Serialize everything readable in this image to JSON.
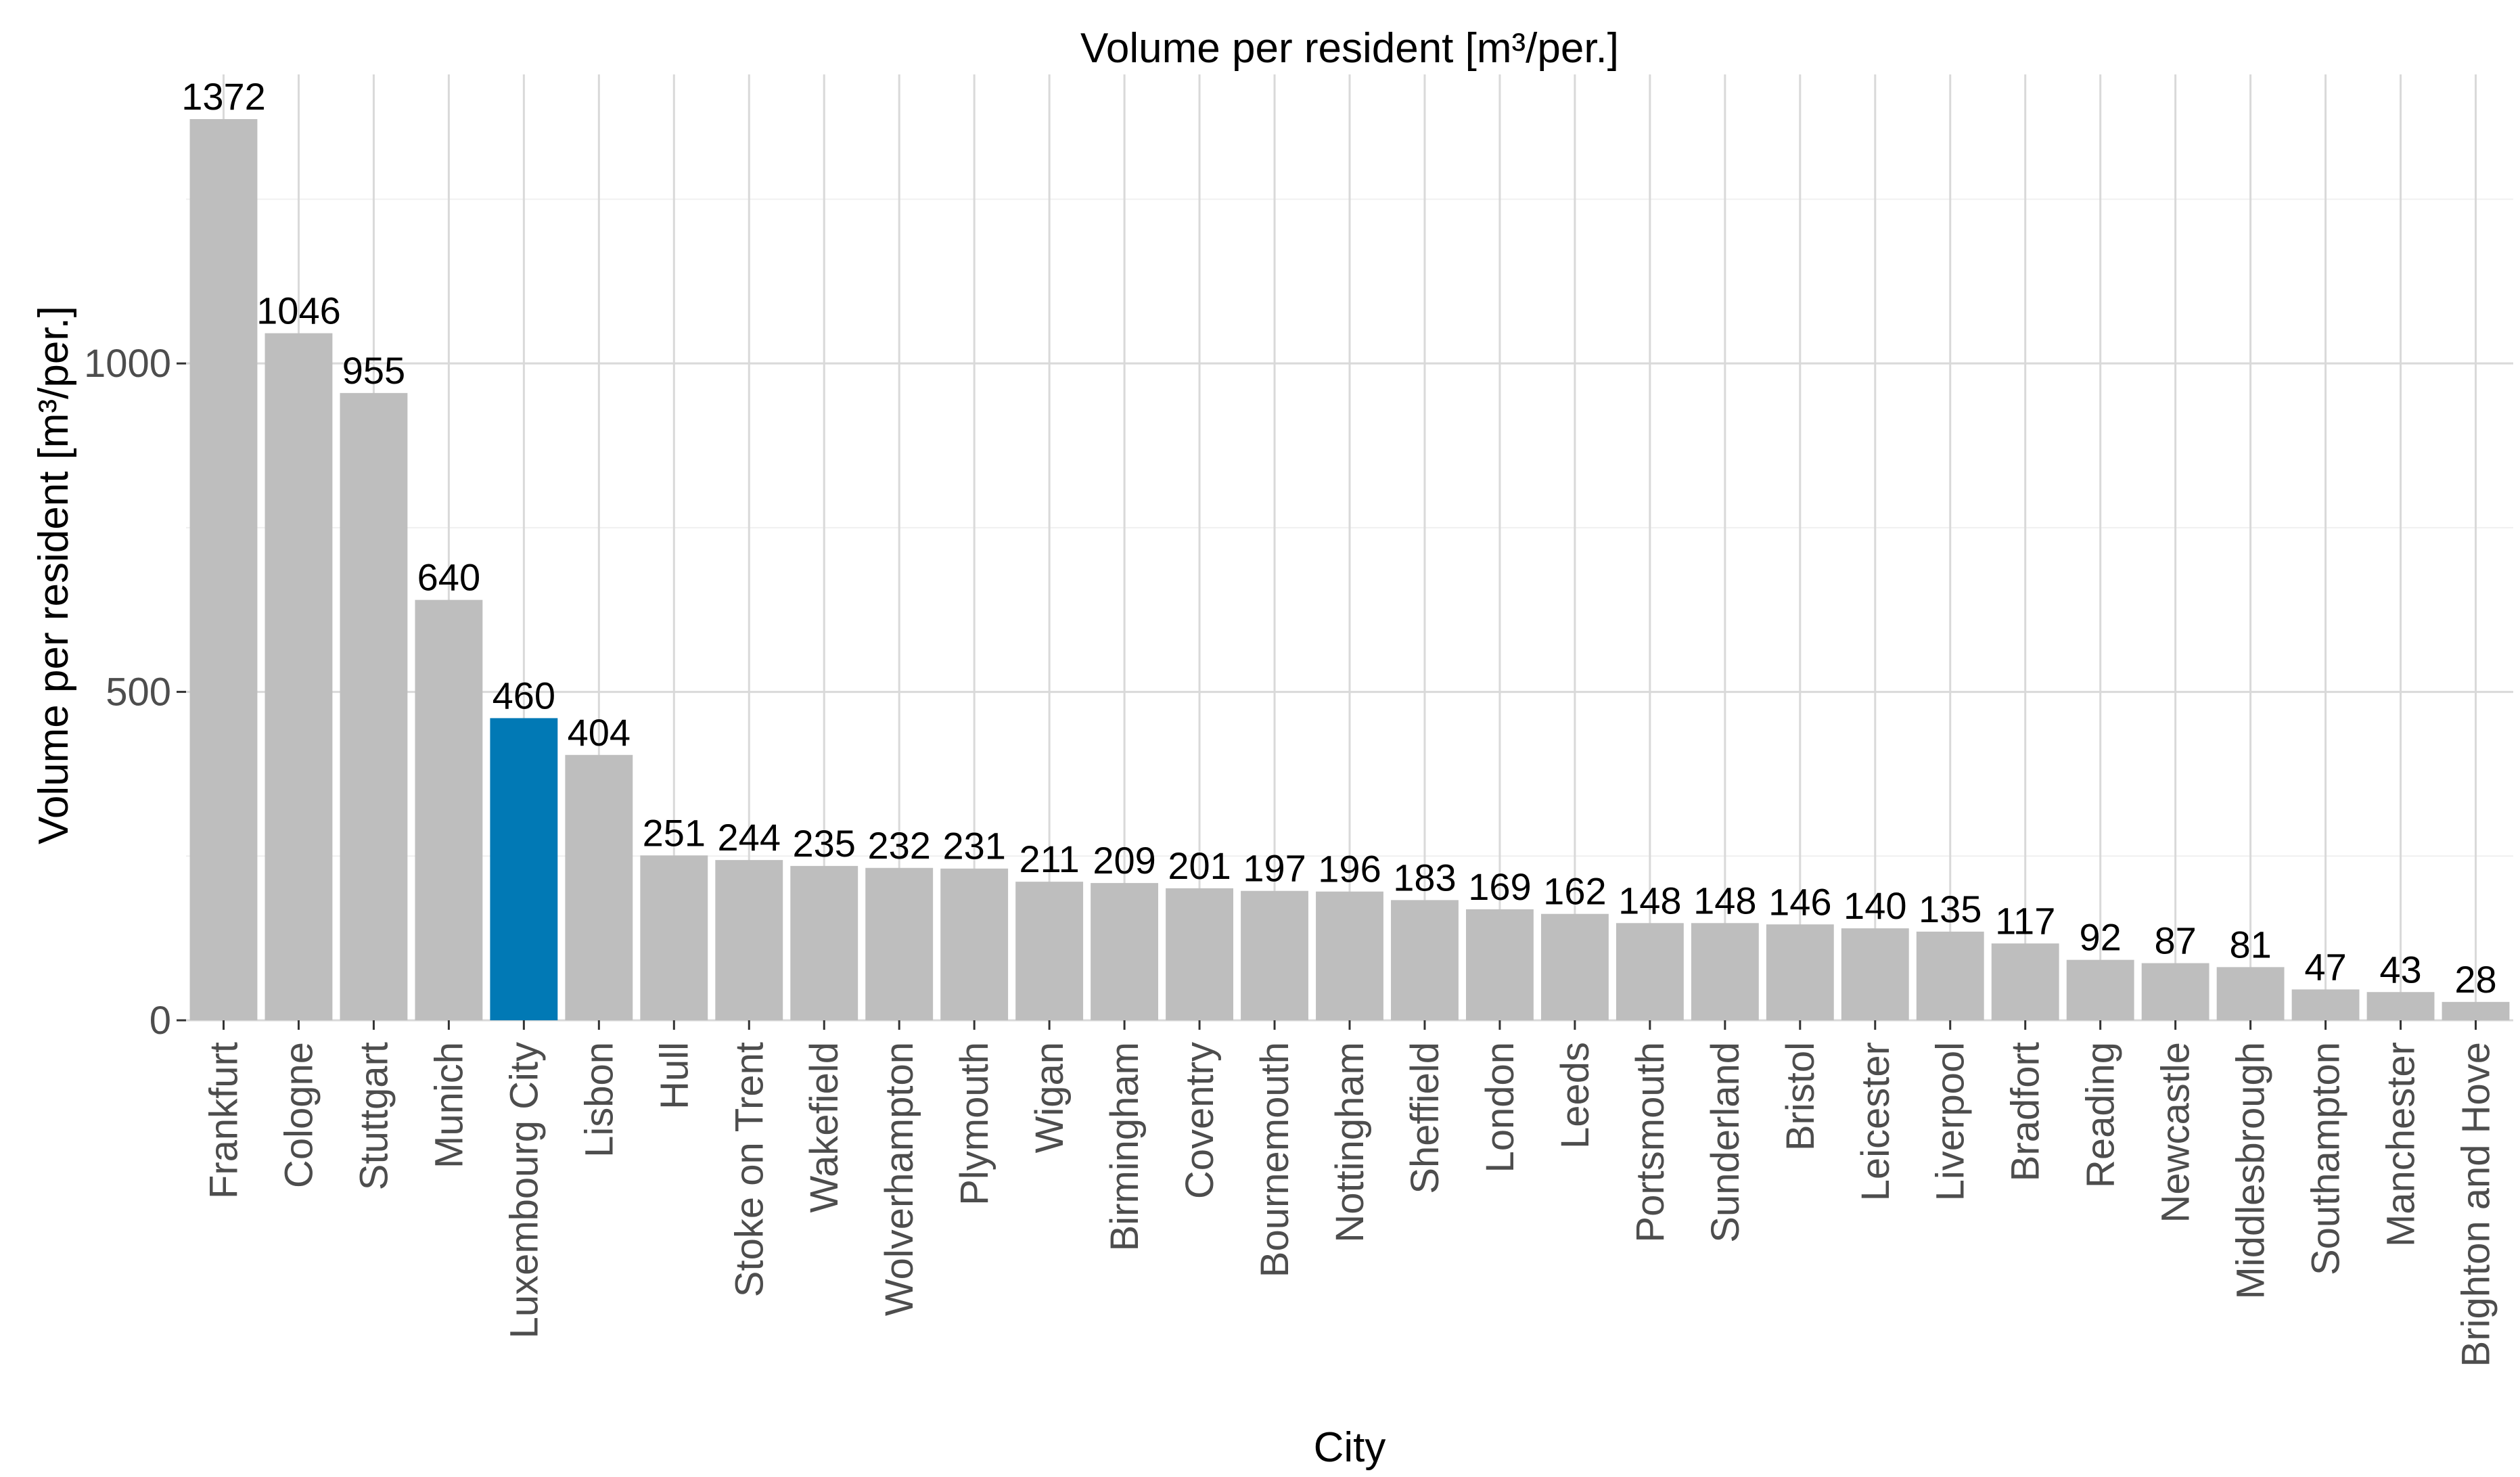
{
  "chart_data": {
    "type": "bar",
    "title": "Volume per resident [m³/per.]",
    "xlabel": "City",
    "ylabel": "Volume per resident [m³/per.]",
    "categories": [
      "Frankfurt",
      "Cologne",
      "Stuttgart",
      "Munich",
      "Luxembourg City",
      "Lisbon",
      "Hull",
      "Stoke on Trent",
      "Wakefield",
      "Wolverhampton",
      "Plymouth",
      "Wigan",
      "Birmingham",
      "Coventry",
      "Bournemouth",
      "Nottingham",
      "Sheffield",
      "London",
      "Leeds",
      "Portsmouth",
      "Sunderland",
      "Bristol",
      "Leicester",
      "Liverpool",
      "Bradfort",
      "Reading",
      "Newcastle",
      "Middlesbrough",
      "Southampton",
      "Manchester",
      "Brighton and Hove"
    ],
    "values": [
      1372,
      1046,
      955,
      640,
      460,
      404,
      251,
      244,
      235,
      232,
      231,
      211,
      209,
      201,
      197,
      196,
      183,
      169,
      162,
      148,
      148,
      146,
      140,
      135,
      117,
      92,
      87,
      81,
      47,
      43,
      28
    ],
    "highlight": "Luxembourg City",
    "colors": {
      "bar": "#bebebe",
      "highlight": "#0179b5"
    },
    "yticks": [
      0,
      500,
      1000
    ],
    "ylim": [
      0,
      1440
    ],
    "grid": true,
    "legend": "none"
  }
}
